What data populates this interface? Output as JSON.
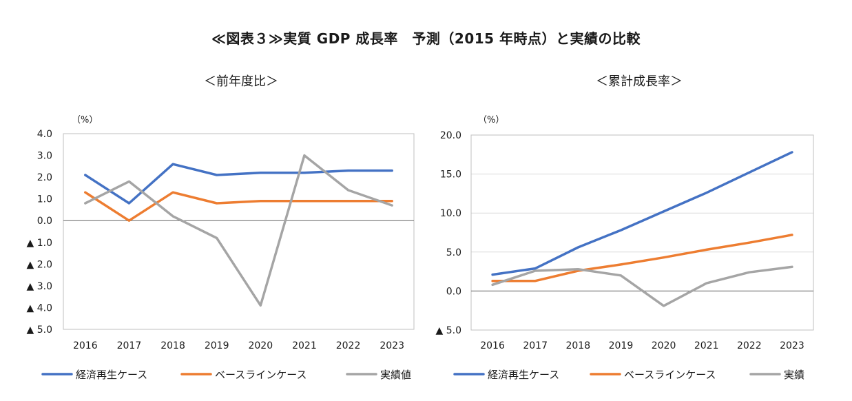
{
  "title": "≪図表３≫実質 GDP 成長率　予測（2015 年時点）と実績の比較",
  "colors": {
    "blue": "#4472C4",
    "orange": "#ED7D31",
    "gray": "#A5A5A5",
    "axis": "#808080",
    "grid": "#D9D9D9"
  },
  "chart_data": [
    {
      "type": "line",
      "title": "＜前年度比＞",
      "unit": "（%）",
      "categories": [
        "2016",
        "2017",
        "2018",
        "2019",
        "2020",
        "2021",
        "2022",
        "2023"
      ],
      "ylim": [
        -5,
        4
      ],
      "yticks": [
        4,
        3,
        2,
        1,
        0,
        -1,
        -2,
        -3,
        -4,
        -5
      ],
      "ytick_labels": [
        "4.0",
        "3.0",
        "2.0",
        "1.0",
        "0.0",
        "▲ 1.0",
        "▲ 2.0",
        "▲ 3.0",
        "▲ 4.0",
        "▲ 5.0"
      ],
      "grid": false,
      "legend": "bottom",
      "series": [
        {
          "name": "経済再生ケース",
          "color": "blue",
          "values": [
            2.1,
            0.8,
            2.6,
            2.1,
            2.2,
            2.2,
            2.3,
            2.3
          ]
        },
        {
          "name": "ベースラインケース",
          "color": "orange",
          "values": [
            1.3,
            0.0,
            1.3,
            0.8,
            0.9,
            0.9,
            0.9,
            0.9
          ]
        },
        {
          "name": "実績値",
          "color": "gray",
          "values": [
            0.8,
            1.8,
            0.2,
            -0.8,
            -3.9,
            3.0,
            1.4,
            0.7
          ]
        }
      ]
    },
    {
      "type": "line",
      "title": "＜累計成長率＞",
      "unit": "（%）",
      "categories": [
        "2016",
        "2017",
        "2018",
        "2019",
        "2020",
        "2021",
        "2022",
        "2023"
      ],
      "ylim": [
        -5,
        20
      ],
      "yticks": [
        20,
        15,
        10,
        5,
        0,
        -5
      ],
      "ytick_labels": [
        "20.0",
        "15.0",
        "10.0",
        "5.0",
        "0.0",
        "▲ 5.0"
      ],
      "grid": true,
      "legend": "bottom",
      "series": [
        {
          "name": "経済再生ケース",
          "color": "blue",
          "values": [
            2.1,
            2.9,
            5.6,
            7.8,
            10.2,
            12.6,
            15.2,
            17.8
          ]
        },
        {
          "name": "ベースラインケース",
          "color": "orange",
          "values": [
            1.3,
            1.3,
            2.6,
            3.4,
            4.3,
            5.3,
            6.2,
            7.2
          ]
        },
        {
          "name": "実績",
          "color": "gray",
          "values": [
            0.8,
            2.6,
            2.8,
            2.0,
            -1.9,
            1.0,
            2.4,
            3.1
          ]
        }
      ]
    }
  ]
}
